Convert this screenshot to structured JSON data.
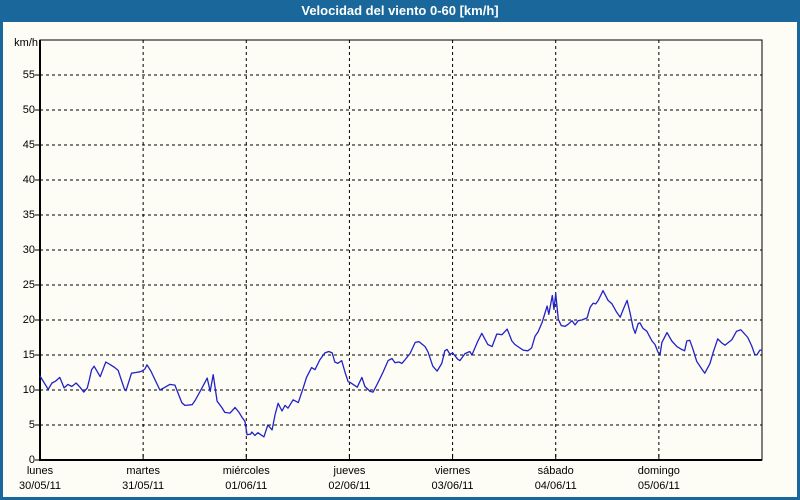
{
  "window": {
    "title": "Velocidad del viento 0-60 [km/h]"
  },
  "colors": {
    "titlebar_bg": "#1a689b",
    "frame_border": "#1a689b",
    "content_bg": "#fdfdf5",
    "line": "#2222c8",
    "axis": "#000000",
    "grid": "#000000",
    "text": "#000000",
    "title_text": "#ffffff"
  },
  "chart_data": {
    "type": "line",
    "title": "Velocidad del viento 0-60 [km/h]",
    "ylabel": "km/h",
    "xlabel": "",
    "ylim": [
      0,
      60
    ],
    "yticks": [
      0,
      5,
      10,
      15,
      20,
      25,
      30,
      35,
      40,
      45,
      50,
      55
    ],
    "grid": "dashed",
    "legend_position": "none",
    "x_axis": {
      "unit": "hours",
      "range": [
        0,
        168
      ],
      "days": [
        {
          "name": "lunes",
          "date": "30/05/11"
        },
        {
          "name": "martes",
          "date": "31/05/11"
        },
        {
          "name": "miércoles",
          "date": "01/06/11"
        },
        {
          "name": "jueves",
          "date": "02/06/11"
        },
        {
          "name": "viernes",
          "date": "03/06/11"
        },
        {
          "name": "sábado",
          "date": "04/06/11"
        },
        {
          "name": "domingo",
          "date": "05/06/11"
        }
      ]
    },
    "series": [
      {
        "name": "velocidad del viento (km/h)",
        "x_hours": [
          0,
          0.7,
          1.9,
          2.8,
          3.7,
          4.6,
          5.6,
          6.5,
          7.4,
          8.4,
          9.3,
          10.2,
          11,
          11.5,
          12,
          12.6,
          14,
          15.3,
          16.4,
          17.4,
          18.2,
          19.6,
          20,
          21.3,
          22.3,
          23.3,
          24,
          24.4,
          24.9,
          25.8,
          27.9,
          28.8,
          30.2,
          31.4,
          33,
          33.7,
          35.4,
          36.1,
          37.7,
          38.9,
          39.6,
          40.3,
          41.2,
          42.3,
          43,
          44.2,
          45.4,
          46.3,
          47,
          47.7,
          48.2,
          49,
          49.3,
          50,
          50.7,
          51.4,
          52.1,
          53,
          54,
          54.7,
          55.4,
          56.3,
          57,
          57.7,
          58.9,
          60.1,
          61.2,
          62,
          63.2,
          64,
          65.1,
          66.3,
          67.2,
          68,
          68.6,
          69.3,
          70.2,
          71,
          71.7,
          72.1,
          72.6,
          73.8,
          74.9,
          75.6,
          76.8,
          77.5,
          78.6,
          79.8,
          81,
          81.9,
          82.6,
          83.5,
          84.2,
          84.9,
          86.1,
          87.3,
          88.2,
          89.6,
          90.3,
          91.4,
          92.4,
          93.5,
          94.2,
          94.7,
          95.4,
          96,
          97.2,
          97.7,
          98.9,
          100,
          100.5,
          101.9,
          102.8,
          104.2,
          105.2,
          106.3,
          107.5,
          108.7,
          109.8,
          110.5,
          111.7,
          112.4,
          113.5,
          114.4,
          115.2,
          115.9,
          116.8,
          117.5,
          118,
          118.4,
          119.2,
          119.6,
          120,
          120.6,
          121.3,
          122.2,
          122.9,
          123.8,
          124.5,
          125.2,
          126.1,
          127.3,
          128,
          128.7,
          129.3,
          129.9,
          131,
          132.2,
          133.1,
          134.2,
          135,
          135.7,
          136.6,
          137.3,
          138,
          138.5,
          139.2,
          139.6,
          140.3,
          141.2,
          142.4,
          143.1,
          143.8,
          144.3,
          144.7,
          145.9,
          147,
          148.2,
          149.3,
          150,
          150.5,
          151.2,
          151.9,
          152.8,
          154,
          154.7,
          155.9,
          156.6,
          157.7,
          158.7,
          159.4,
          161,
          162.1,
          163.1,
          164.7,
          165.6,
          166.3,
          166.8,
          167.5,
          168
        ],
        "values": [
          12,
          11.3,
          10.1,
          11,
          11.3,
          11.8,
          10.3,
          10.8,
          10.5,
          11,
          10.4,
          9.7,
          10.3,
          11.5,
          12.9,
          13.4,
          11.9,
          14,
          13.6,
          13.2,
          12.8,
          10.2,
          9.9,
          12.4,
          12.5,
          12.6,
          12.8,
          13,
          13.6,
          12.7,
          10,
          10.3,
          10.8,
          10.7,
          8.2,
          7.8,
          7.9,
          8.5,
          10.3,
          11.7,
          9.8,
          12.2,
          8.4,
          7.5,
          6.8,
          6.7,
          7.5,
          6.8,
          6.1,
          5.5,
          3.6,
          3.7,
          4,
          3.5,
          3.9,
          3.6,
          3.3,
          5,
          4.3,
          6.5,
          8.1,
          7,
          7.8,
          7.4,
          8.6,
          8.2,
          10.2,
          11.8,
          13.2,
          12.9,
          14.3,
          15.3,
          15.5,
          15.3,
          14,
          13.8,
          14.2,
          12.5,
          11.2,
          11.1,
          10.9,
          10.4,
          11.8,
          10.5,
          9.8,
          9.7,
          11,
          12.5,
          14.2,
          14.5,
          13.9,
          14,
          13.8,
          14.3,
          15.2,
          16.8,
          16.9,
          16.2,
          15.4,
          13.4,
          12.7,
          13.8,
          15.6,
          15.8,
          15.1,
          15.3,
          14.4,
          14.2,
          15.2,
          15.5,
          15,
          17,
          18.1,
          16.5,
          16.2,
          18,
          17.9,
          18.7,
          17,
          16.5,
          16,
          15.7,
          15.6,
          16,
          17.7,
          18.3,
          19.6,
          21,
          22,
          20.8,
          23.5,
          21.5,
          23.8,
          20.1,
          19.2,
          19.1,
          19.4,
          19.9,
          19.3,
          19.9,
          20,
          20.3,
          21.8,
          22.4,
          22.3,
          22.8,
          24.2,
          22.8,
          22.3,
          21.1,
          20.4,
          21.5,
          22.8,
          21,
          18.9,
          18.1,
          19.5,
          19.6,
          18.8,
          18.4,
          17,
          16.5,
          15.4,
          15.1,
          16.8,
          18.2,
          17,
          16.2,
          15.8,
          15.6,
          17,
          17.1,
          15.9,
          14.1,
          13,
          12.4,
          13.8,
          15.3,
          17.3,
          16.7,
          16.4,
          17.2,
          18.4,
          18.6,
          17.5,
          16.3,
          15.1,
          15,
          15.7,
          15.7
        ]
      }
    ]
  }
}
